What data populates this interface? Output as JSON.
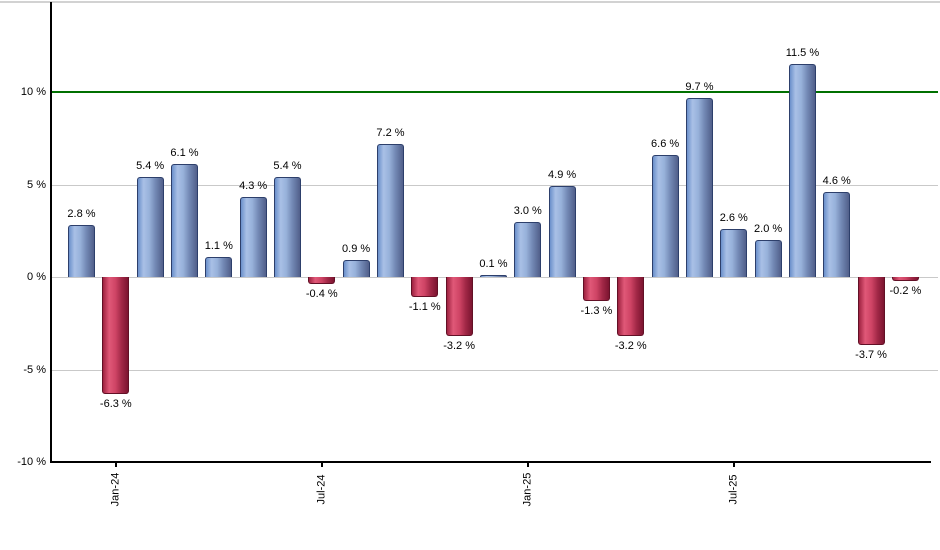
{
  "chart_data": {
    "type": "bar",
    "title": "",
    "y_axis": {
      "unit": "%",
      "range": [
        -10,
        15
      ],
      "ticks": [
        {
          "value": 10,
          "label": "10 %"
        },
        {
          "value": 5,
          "label": "5 %"
        },
        {
          "value": 0,
          "label": "0 %"
        },
        {
          "value": -5,
          "label": "-5 %"
        },
        {
          "value": -10,
          "label": "-10 %"
        }
      ],
      "gridlines": [
        5,
        0,
        -5
      ],
      "reference_line": {
        "value": 10,
        "color": "#007000"
      }
    },
    "x_axis": {
      "ticks": [
        {
          "bar_index": 1,
          "label": "Jan-24"
        },
        {
          "bar_index": 7,
          "label": "Jul-24"
        },
        {
          "bar_index": 13,
          "label": "Jan-25"
        },
        {
          "bar_index": 19,
          "label": "Jul-25"
        }
      ]
    },
    "bars": [
      {
        "value": 2.8,
        "label": "2.8 %"
      },
      {
        "value": -6.3,
        "label": "-6.3 %"
      },
      {
        "value": 5.4,
        "label": "5.4 %"
      },
      {
        "value": 6.1,
        "label": "6.1 %"
      },
      {
        "value": 1.1,
        "label": "1.1 %"
      },
      {
        "value": 4.3,
        "label": "4.3 %"
      },
      {
        "value": 5.4,
        "label": "5.4 %"
      },
      {
        "value": -0.4,
        "label": "-0.4 %"
      },
      {
        "value": 0.9,
        "label": "0.9 %"
      },
      {
        "value": 7.2,
        "label": "7.2 %"
      },
      {
        "value": -1.1,
        "label": "-1.1 %"
      },
      {
        "value": -3.2,
        "label": "-3.2 %"
      },
      {
        "value": 0.1,
        "label": "0.1 %"
      },
      {
        "value": 3.0,
        "label": "3.0 %"
      },
      {
        "value": 4.9,
        "label": "4.9 %"
      },
      {
        "value": -1.3,
        "label": "-1.3 %"
      },
      {
        "value": -3.2,
        "label": "-3.2 %"
      },
      {
        "value": 6.6,
        "label": "6.6 %"
      },
      {
        "value": 9.7,
        "label": "9.7 %"
      },
      {
        "value": 2.6,
        "label": "2.6 %"
      },
      {
        "value": 2.0,
        "label": "2.0 %"
      },
      {
        "value": 11.5,
        "label": "11.5 %"
      },
      {
        "value": 4.6,
        "label": "4.6 %"
      },
      {
        "value": -3.7,
        "label": "-3.7 %"
      },
      {
        "value": -0.2,
        "label": "-0.2 %"
      }
    ],
    "colors": {
      "positive": "#88a7da",
      "negative": "#c83a5e",
      "grid": "#c9c9c9",
      "axis": "#000000",
      "reference": "#007000",
      "top_border": "#d2d2d2",
      "label_text": "#000000"
    }
  }
}
